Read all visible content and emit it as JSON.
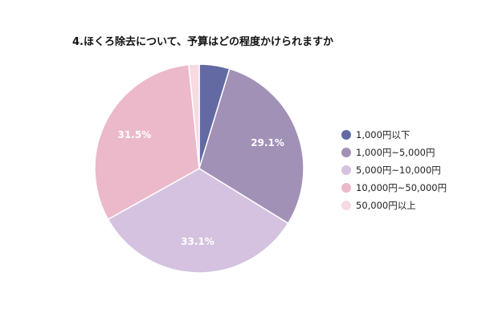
{
  "chart_data": {
    "type": "pie",
    "title": "4.ほくろ除去について、予算はどの程度かけられますか",
    "categories": [
      "1,000円以下",
      "1,000円~5,000円",
      "5,000円~10,000円",
      "10,000円~50,000円",
      "50,000円以上"
    ],
    "values": [
      4.7,
      29.1,
      33.1,
      31.5,
      1.6
    ],
    "data_labels": [
      "",
      "29.1%",
      "33.1%",
      "31.5%",
      ""
    ],
    "colors": [
      "#636aa3",
      "#a291b7",
      "#d5c2e0",
      "#ecb9ca",
      "#f6dbe1"
    ],
    "legend_position": "right"
  }
}
